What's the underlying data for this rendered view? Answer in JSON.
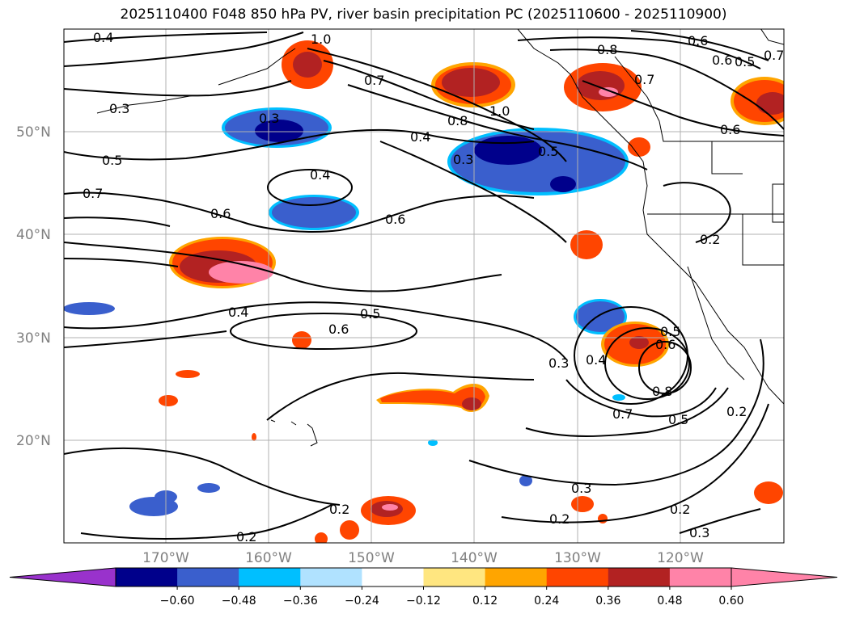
{
  "title": "2025110400 F048 850 hPa PV, river basin precipitation PC (2025110600 - 2025110900)",
  "map": {
    "lat_labels": [
      "50°N",
      "40°N",
      "30°N",
      "20°N"
    ],
    "lon_labels": [
      "170°W",
      "160°W",
      "150°W",
      "140°W",
      "130°W",
      "120°W"
    ],
    "contour_labels": [
      "0.4",
      "1.0",
      "0.3",
      "0.5",
      "0.7",
      "0.6",
      "0.4",
      "0.6",
      "0.4",
      "0.3",
      "0.6",
      "0.5",
      "0.7",
      "0.8",
      "1.0",
      "0.4",
      "0.3",
      "0.5",
      "0.6",
      "0.8",
      "0.7",
      "0.6",
      "0.5",
      "0.7",
      "0.6",
      "0.2",
      "0.3",
      "0.4",
      "0.5",
      "0.6",
      "0.8",
      "0.7",
      "0.5",
      "0.2",
      "0.3",
      "0.2",
      "0.2",
      "0.3",
      "0.2",
      "0.2"
    ],
    "land_color": "#ffffff",
    "grid_color": "#b0b0b0"
  },
  "colorbar": {
    "ticks": [
      "−0.60",
      "−0.48",
      "−0.36",
      "−0.24",
      "−0.12",
      "0.12",
      "0.24",
      "0.36",
      "0.48",
      "0.60"
    ],
    "colors": [
      "#9932cc",
      "#00008b",
      "#3a5fcd",
      "#00bfff",
      "#b0e2ff",
      "#ffffff",
      "#ffe680",
      "#ffa500",
      "#ff4500",
      "#b22222",
      "#ff83a8",
      "#ff83a8"
    ],
    "boundaries": [
      -0.72,
      -0.6,
      -0.48,
      -0.36,
      -0.24,
      -0.12,
      0.12,
      0.24,
      0.36,
      0.48,
      0.6,
      0.72
    ]
  }
}
